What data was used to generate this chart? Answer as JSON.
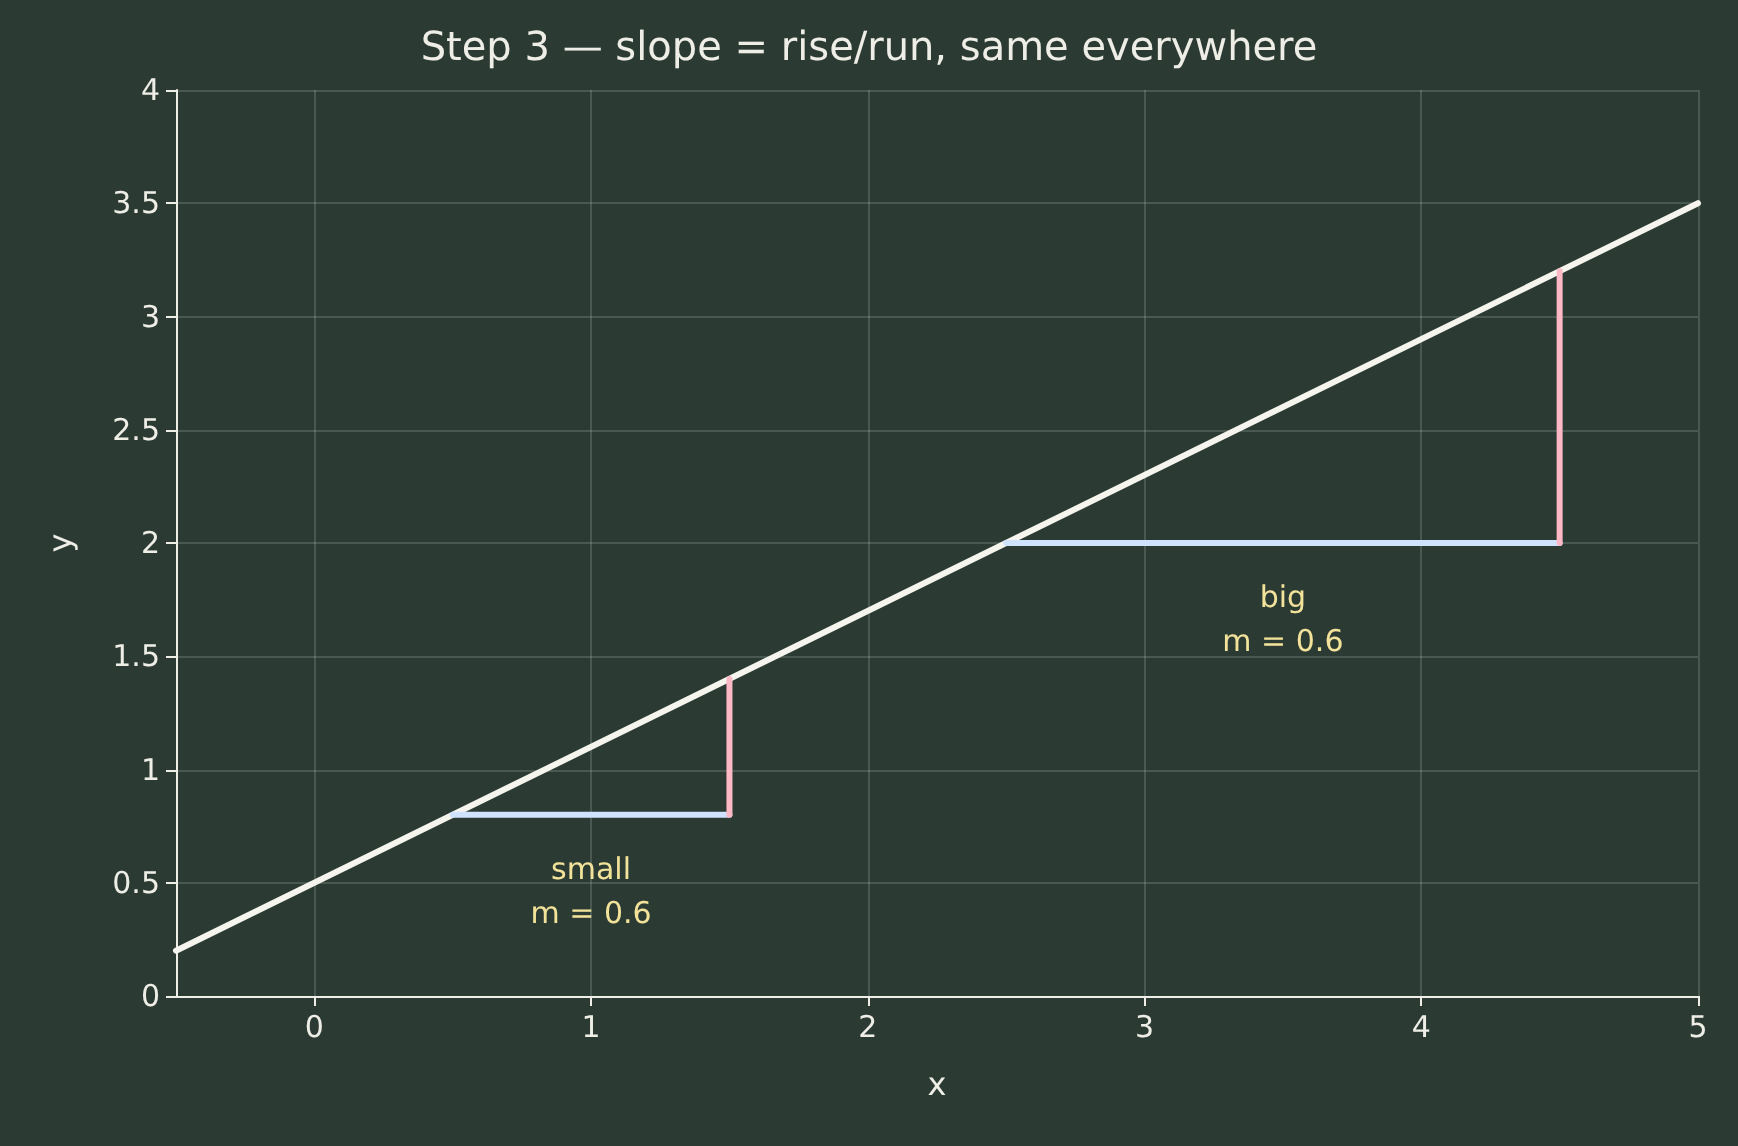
{
  "chart_data": {
    "type": "line",
    "title": "Step 3 — slope = rise/run, same everywhere",
    "xlabel": "x",
    "ylabel": "y",
    "xlim": [
      -0.5,
      5
    ],
    "xticks": [
      0,
      1,
      2,
      3,
      4,
      5
    ],
    "ylim": [
      0,
      4
    ],
    "yticks": [
      0,
      0.5,
      1,
      1.5,
      2,
      2.5,
      3,
      3.5,
      4
    ],
    "series": [
      {
        "color": "#f5f5ee",
        "x": [
          -0.5,
          5
        ],
        "values": [
          0.2,
          3.5
        ]
      },
      {
        "color": "#cfe2ff",
        "x": [
          0.5,
          1.5
        ],
        "values": [
          0.8,
          0.8
        ]
      },
      {
        "color": "#ffb8c6",
        "x": [
          1.5,
          1.5
        ],
        "values": [
          0.8,
          1.4
        ]
      },
      {
        "color": "#cfe2ff",
        "x": [
          2.5,
          4.5
        ],
        "values": [
          2,
          2
        ]
      },
      {
        "color": "#ffb8c6",
        "x": [
          4.5,
          4.5
        ],
        "values": [
          2,
          3.2
        ]
      }
    ],
    "annotations": [
      "small\nm = 0.6",
      "big\nm = 0.6"
    ],
    "grid": true,
    "marker": "none",
    "line_style": "solid"
  }
}
